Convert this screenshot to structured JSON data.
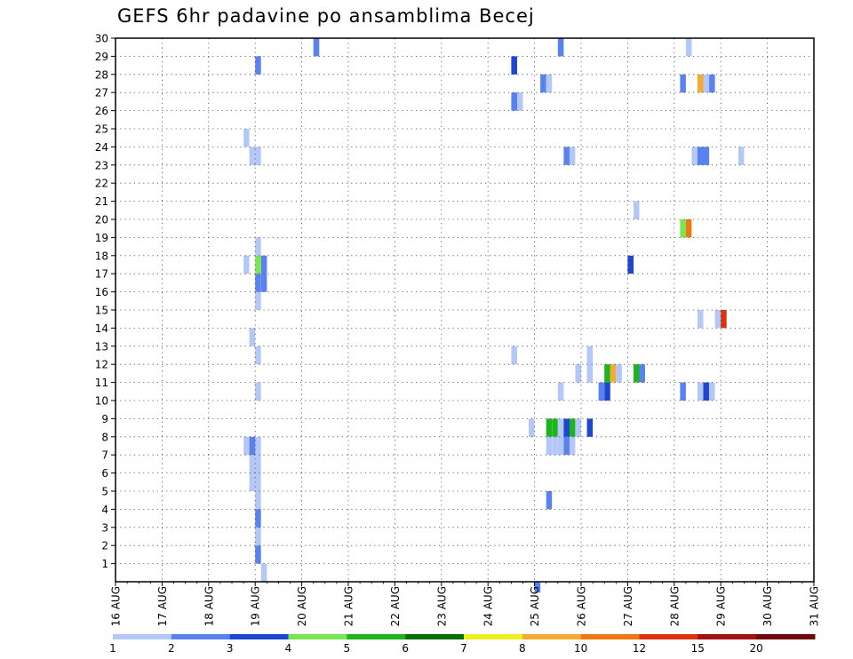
{
  "chart_data": {
    "type": "heatmap",
    "title": "GEFS 6hr padavine po ansamblima Becej",
    "xlabel": "",
    "ylabel": "",
    "x_tick_labels": [
      "16 AUG",
      "17 AUG",
      "18 AUG",
      "19 AUG",
      "20 AUG",
      "21 AUG",
      "22 AUG",
      "23 AUG",
      "24 AUG",
      "25 AUG",
      "26 AUG",
      "27 AUG",
      "28 AUG",
      "29 AUG",
      "30 AUG",
      "31 AUG"
    ],
    "y_tick_labels": [
      "1",
      "2",
      "3",
      "4",
      "5",
      "6",
      "7",
      "8",
      "9",
      "10",
      "11",
      "12",
      "13",
      "14",
      "15",
      "16",
      "17",
      "18",
      "19",
      "20",
      "21",
      "22",
      "23",
      "24",
      "25",
      "26",
      "27",
      "28",
      "29",
      "30"
    ],
    "xlim": [
      0,
      60
    ],
    "ylim": [
      0,
      30
    ],
    "grid": true,
    "legend": {
      "placement": "bottom",
      "labels": [
        "1",
        "2",
        "3",
        "4",
        "5",
        "6",
        "7",
        "8",
        "10",
        "12",
        "15",
        "20"
      ],
      "colors": [
        "#b4c8f8",
        "#5a82ee",
        "#1e46d2",
        "#78e650",
        "#1eb41e",
        "#0a6e0a",
        "#f0f01e",
        "#f5aa32",
        "#f07814",
        "#dc320f",
        "#a0140f",
        "#6e0a0a"
      ]
    },
    "cells": [
      [
        12.75,
        0,
        1
      ],
      [
        12.25,
        1,
        2
      ],
      [
        12.25,
        2,
        1
      ],
      [
        12.25,
        3,
        2
      ],
      [
        12.25,
        4,
        1
      ],
      [
        12.25,
        5,
        1
      ],
      [
        11.75,
        5,
        1
      ],
      [
        11.75,
        6,
        1
      ],
      [
        12.25,
        6,
        1
      ],
      [
        12.25,
        7,
        1
      ],
      [
        11.25,
        7,
        1
      ],
      [
        11.75,
        7,
        2
      ],
      [
        36.25,
        -1,
        2
      ],
      [
        37.25,
        4,
        2
      ],
      [
        35.75,
        8,
        1
      ],
      [
        37.25,
        8,
        5
      ],
      [
        37.75,
        8,
        5
      ],
      [
        38.25,
        8,
        1
      ],
      [
        38.75,
        8,
        3
      ],
      [
        39.25,
        8,
        5
      ],
      [
        39.75,
        8,
        1
      ],
      [
        40.75,
        8,
        3
      ],
      [
        37.25,
        7,
        1
      ],
      [
        37.75,
        7,
        1
      ],
      [
        38.25,
        7,
        1
      ],
      [
        38.75,
        7,
        2
      ],
      [
        39.25,
        7,
        1
      ],
      [
        12.25,
        10,
        1
      ],
      [
        12.25,
        12,
        1
      ],
      [
        11.75,
        13,
        1
      ],
      [
        12.25,
        15,
        1
      ],
      [
        12.25,
        16,
        2
      ],
      [
        12.25,
        17,
        4
      ],
      [
        12.75,
        17,
        2
      ],
      [
        12.75,
        16,
        2
      ],
      [
        11.25,
        17,
        1
      ],
      [
        12.25,
        18,
        1
      ],
      [
        11.75,
        23,
        1
      ],
      [
        12.25,
        23,
        1
      ],
      [
        11.25,
        24,
        1
      ],
      [
        12.25,
        28,
        2
      ],
      [
        17.25,
        29,
        2
      ],
      [
        34.25,
        28,
        3
      ],
      [
        34.25,
        26,
        2
      ],
      [
        34.75,
        26,
        1
      ],
      [
        36.75,
        27,
        2
      ],
      [
        37.25,
        27,
        1
      ],
      [
        38.25,
        29,
        2
      ],
      [
        38.75,
        23,
        2
      ],
      [
        39.25,
        23,
        1
      ],
      [
        34.25,
        12,
        1
      ],
      [
        38.25,
        10,
        1
      ],
      [
        39.75,
        11,
        1
      ],
      [
        40.75,
        11,
        1
      ],
      [
        40.75,
        12,
        1
      ],
      [
        41.75,
        10,
        2
      ],
      [
        42.25,
        10,
        3
      ],
      [
        42.25,
        11,
        5
      ],
      [
        42.75,
        11,
        8
      ],
      [
        43.25,
        11,
        1
      ],
      [
        44.75,
        11,
        5
      ],
      [
        45.25,
        11,
        2
      ],
      [
        48.75,
        10,
        2
      ],
      [
        50.25,
        10,
        1
      ],
      [
        50.75,
        10,
        3
      ],
      [
        51.25,
        10,
        1
      ],
      [
        44.25,
        17,
        3
      ],
      [
        44.75,
        20,
        1
      ],
      [
        48.75,
        19,
        4
      ],
      [
        49.25,
        19,
        9
      ],
      [
        48.75,
        27,
        2
      ],
      [
        50.25,
        27,
        8
      ],
      [
        50.75,
        27,
        1
      ],
      [
        51.25,
        27,
        2
      ],
      [
        49.25,
        29,
        1
      ],
      [
        49.75,
        23,
        1
      ],
      [
        50.25,
        23,
        2
      ],
      [
        50.75,
        23,
        2
      ],
      [
        53.75,
        23,
        1
      ],
      [
        50.25,
        14,
        1
      ],
      [
        51.75,
        14,
        1
      ],
      [
        52.25,
        14,
        10
      ]
    ]
  }
}
